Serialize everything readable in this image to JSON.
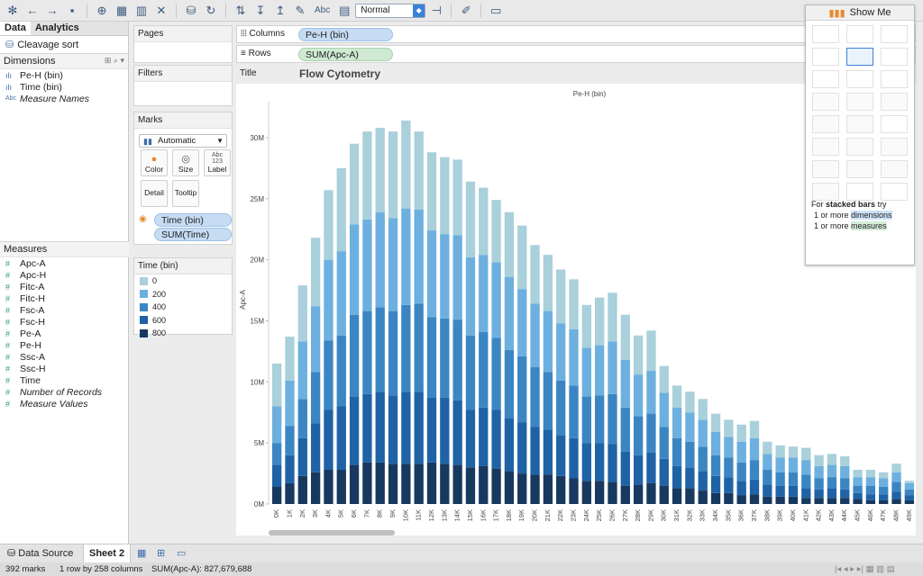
{
  "toolbar": {
    "fit_value": "Normal",
    "abc_label": "Abc"
  },
  "left_panel": {
    "tabs": [
      "Data",
      "Analytics"
    ],
    "data_source": "Cleavage sort",
    "dimensions_header": "Dimensions",
    "dimensions": [
      {
        "icon": "bar-icon",
        "label": "Pe-H (bin)",
        "italic": false
      },
      {
        "icon": "bar-icon",
        "label": "Time (bin)",
        "italic": false
      },
      {
        "icon": "abc-icon",
        "label": "Measure Names",
        "italic": true
      }
    ],
    "measures_header": "Measures",
    "measures": [
      {
        "label": "Apc-A",
        "italic": false
      },
      {
        "label": "Apc-H",
        "italic": false
      },
      {
        "label": "Fitc-A",
        "italic": false
      },
      {
        "label": "Fitc-H",
        "italic": false
      },
      {
        "label": "Fsc-A",
        "italic": false
      },
      {
        "label": "Fsc-H",
        "italic": false
      },
      {
        "label": "Pe-A",
        "italic": false
      },
      {
        "label": "Pe-H",
        "italic": false
      },
      {
        "label": "Ssc-A",
        "italic": false
      },
      {
        "label": "Ssc-H",
        "italic": false
      },
      {
        "label": "Time",
        "italic": false
      },
      {
        "label": "Number of Records",
        "italic": true
      },
      {
        "label": "Measure Values",
        "italic": true
      }
    ]
  },
  "cards": {
    "pages": "Pages",
    "filters": "Filters",
    "marks": "Marks",
    "mark_type": "Automatic",
    "buttons": {
      "color": "Color",
      "size": "Size",
      "label": "Label",
      "detail": "Detail",
      "tooltip": "Tooltip"
    },
    "label_icon_text": "Abc\n123",
    "color_pill": "Time (bin)",
    "size_pill": "SUM(Time)",
    "legend_title": "Time (bin)",
    "legend": [
      {
        "label": "0",
        "color": "#a9d0db"
      },
      {
        "label": "200",
        "color": "#6db0df"
      },
      {
        "label": "400",
        "color": "#3b86c2"
      },
      {
        "label": "600",
        "color": "#1f63a6"
      },
      {
        "label": "800",
        "color": "#18395f"
      }
    ]
  },
  "shelves": {
    "columns_label": "Columns",
    "columns_pill": "Pe-H (bin)",
    "rows_label": "Rows",
    "rows_pill": "SUM(Apc-A)",
    "title_label": "Title",
    "title_value": "Flow Cytometry"
  },
  "show_me": {
    "title": "Show Me",
    "hint_prefix": "For ",
    "hint_bold": "stacked bars",
    "hint_suffix": " try",
    "req1_prefix": "1 or more ",
    "req1_hl": "dimensions",
    "req2_prefix": "1 or more ",
    "req2_hl": "measures"
  },
  "chart_data": {
    "type": "bar",
    "title": "Pe-H (bin)",
    "ylabel": "Apc-A",
    "ylim": [
      0,
      32500000
    ],
    "yticks": [
      0,
      5000000,
      10000000,
      15000000,
      20000000,
      25000000,
      30000000
    ],
    "ytick_labels": [
      "0M",
      "5M",
      "10M",
      "15M",
      "20M",
      "25M",
      "30M"
    ],
    "categories": [
      "0K",
      "1K",
      "2K",
      "3K",
      "4K",
      "5K",
      "6K",
      "7K",
      "8K",
      "9K",
      "10K",
      "11K",
      "12K",
      "13K",
      "14K",
      "15K",
      "16K",
      "17K",
      "18K",
      "19K",
      "20K",
      "21K",
      "22K",
      "23K",
      "24K",
      "25K",
      "26K",
      "27K",
      "28K",
      "29K",
      "30K",
      "31K",
      "32K",
      "33K",
      "34K",
      "35K",
      "36K",
      "37K",
      "38K",
      "39K",
      "40K",
      "41K",
      "42K",
      "43K",
      "44K",
      "45K",
      "46K",
      "47K",
      "48K",
      "49K"
    ],
    "totals": [
      11.5,
      13.7,
      17.9,
      21.8,
      25.7,
      27.5,
      29.5,
      30.5,
      30.8,
      30.5,
      31.4,
      30.5,
      28.8,
      28.4,
      28.2,
      26.4,
      25.9,
      24.9,
      23.9,
      22.8,
      21.2,
      20.4,
      19.2,
      18.4,
      16.3,
      16.9,
      17.3,
      15.5,
      13.8,
      14.2,
      11.3,
      9.7,
      9.2,
      8.6,
      7.4,
      6.9,
      6.5,
      6.8,
      5.1,
      4.8,
      4.7,
      4.6,
      4.0,
      4.1,
      3.9,
      2.8,
      2.8,
      2.6,
      3.3,
      1.9
    ],
    "series": [
      {
        "name": "800",
        "color": "#18395f",
        "values": [
          1.4,
          1.7,
          2.3,
          2.6,
          2.8,
          2.8,
          3.2,
          3.4,
          3.4,
          3.3,
          3.3,
          3.3,
          3.4,
          3.3,
          3.2,
          3.0,
          3.1,
          2.9,
          2.7,
          2.5,
          2.4,
          2.4,
          2.3,
          2.1,
          1.9,
          1.9,
          1.8,
          1.5,
          1.6,
          1.7,
          1.5,
          1.3,
          1.3,
          1.1,
          0.9,
          0.9,
          0.7,
          0.8,
          0.6,
          0.6,
          0.6,
          0.5,
          0.5,
          0.5,
          0.5,
          0.4,
          0.3,
          0.3,
          0.4,
          0.3
        ]
      },
      {
        "name": "600",
        "color": "#1f63a6",
        "values": [
          1.8,
          2.3,
          3.1,
          4.0,
          4.9,
          5.2,
          5.6,
          5.6,
          5.8,
          5.6,
          5.9,
          5.9,
          5.3,
          5.4,
          5.3,
          4.7,
          4.8,
          4.8,
          4.3,
          4.2,
          3.9,
          3.7,
          3.3,
          3.3,
          3.1,
          3.1,
          3.1,
          2.8,
          2.4,
          2.5,
          2.2,
          1.8,
          1.7,
          1.6,
          1.4,
          1.3,
          1.2,
          1.2,
          1.0,
          0.9,
          0.9,
          0.8,
          0.7,
          0.8,
          0.7,
          0.5,
          0.5,
          0.5,
          0.6,
          0.4
        ]
      },
      {
        "name": "400",
        "color": "#3b86c2",
        "values": [
          1.8,
          2.4,
          3.2,
          4.2,
          5.7,
          5.8,
          6.7,
          6.8,
          6.9,
          6.9,
          7.1,
          7.2,
          6.6,
          6.5,
          6.6,
          6.1,
          6.2,
          5.9,
          5.6,
          5.4,
          4.9,
          4.7,
          4.5,
          4.3,
          3.8,
          3.9,
          4.1,
          3.6,
          3.2,
          3.2,
          2.6,
          2.3,
          2.1,
          2.0,
          1.7,
          1.6,
          1.5,
          1.6,
          1.2,
          1.1,
          1.1,
          1.1,
          0.9,
          0.9,
          0.9,
          0.6,
          0.7,
          0.6,
          0.8,
          0.5
        ]
      },
      {
        "name": "200",
        "color": "#6db0df",
        "values": [
          3.0,
          3.7,
          4.7,
          5.4,
          6.6,
          6.9,
          7.4,
          7.5,
          7.8,
          7.6,
          7.9,
          7.7,
          7.1,
          6.9,
          6.9,
          6.4,
          6.3,
          6.2,
          6.0,
          5.5,
          5.2,
          5.0,
          4.7,
          4.6,
          4.0,
          4.1,
          4.3,
          3.9,
          3.4,
          3.5,
          2.8,
          2.5,
          2.4,
          2.2,
          1.9,
          1.7,
          1.7,
          1.8,
          1.3,
          1.2,
          1.2,
          1.2,
          1.0,
          1.0,
          1.0,
          0.7,
          0.7,
          0.7,
          0.8,
          0.5
        ]
      },
      {
        "name": "0",
        "color": "#a9d0db",
        "values": [
          3.5,
          3.6,
          4.6,
          5.6,
          5.7,
          6.8,
          6.6,
          7.2,
          6.9,
          7.1,
          7.2,
          6.4,
          6.4,
          6.3,
          6.2,
          6.2,
          5.5,
          5.1,
          5.3,
          5.2,
          4.8,
          4.6,
          4.4,
          4.1,
          3.5,
          3.9,
          4.0,
          3.7,
          3.2,
          3.3,
          2.2,
          1.8,
          1.7,
          1.7,
          1.5,
          1.4,
          1.4,
          1.4,
          1.0,
          1.0,
          0.9,
          1.0,
          0.9,
          0.9,
          0.8,
          0.6,
          0.6,
          0.5,
          0.7,
          0.2
        ]
      }
    ],
    "value_unit": "millions"
  },
  "sheet_tabs": {
    "data_source": "Data Source",
    "sheet": "Sheet 2"
  },
  "status": {
    "marks": "392 marks",
    "dims": "1 row by 258 columns",
    "sum": "SUM(Apc-A): 827,679,688"
  }
}
